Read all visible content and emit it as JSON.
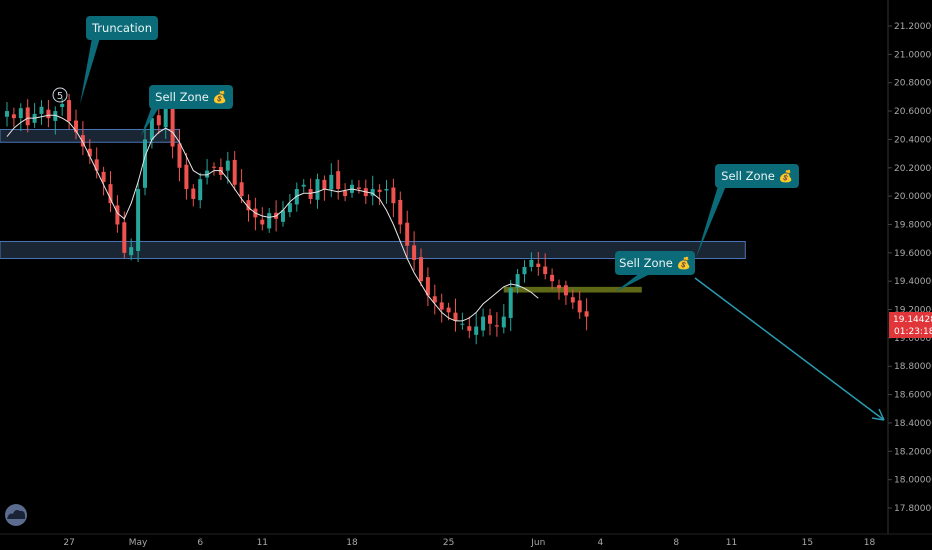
{
  "chart_data": {
    "type": "candlestick",
    "y_axis_labels": [
      "21.20000",
      "21.00000",
      "20.80000",
      "20.60000",
      "20.40000",
      "20.20000",
      "20.00000",
      "19.80000",
      "19.60000",
      "19.40000",
      "19.20000",
      "19.00000",
      "18.80000",
      "18.60000",
      "18.40000",
      "18.20000",
      "18.00000",
      "17.80000"
    ],
    "y_axis_values": [
      21.2,
      21.0,
      20.8,
      20.6,
      20.4,
      20.2,
      20.0,
      19.8,
      19.6,
      19.4,
      19.2,
      19.0,
      18.8,
      18.6,
      18.4,
      18.2,
      18.0,
      17.8
    ],
    "ylim": [
      17.66,
      21.36
    ],
    "x_axis_labels": [
      "27",
      "May",
      "6",
      "11",
      "18",
      "25",
      "Jun",
      "4",
      "8",
      "11",
      "15",
      "18"
    ],
    "x_axis_index": [
      9,
      19,
      28,
      37,
      50,
      64,
      77,
      86,
      97,
      105,
      116,
      125
    ],
    "xlim": [
      0,
      127
    ],
    "current_price": "19.14428",
    "countdown": "01:23:18",
    "wave_label": "5",
    "annotations": [
      "Truncation",
      "Sell Zone 💰",
      "Sell Zone 💰",
      "Sell Zone 💰"
    ],
    "zones": [
      {
        "name": "upper-resistance-zone",
        "y": [
          20.38,
          20.47
        ],
        "x": [
          0,
          25
        ]
      },
      {
        "name": "middle-resistance-zone",
        "y": [
          19.56,
          19.68
        ],
        "x": [
          0,
          107
        ]
      },
      {
        "name": "small-supply-zone",
        "y": [
          19.32,
          19.36
        ],
        "x": [
          73,
          92
        ]
      }
    ],
    "projection": {
      "from": [
        99,
        19.43
      ],
      "to": [
        126,
        18.43
      ]
    },
    "series_closes": [
      20.6,
      20.55,
      20.62,
      20.5,
      20.58,
      20.63,
      20.55,
      20.6,
      20.65,
      20.53,
      20.45,
      20.35,
      20.28,
      20.18,
      20.1,
      19.95,
      19.8,
      19.6,
      19.64,
      20.05,
      20.4,
      20.55,
      20.5,
      20.66,
      20.35,
      20.2,
      20.05,
      19.98,
      20.12,
      20.18,
      20.2,
      20.15,
      20.25,
      20.08,
      20.0,
      19.9,
      19.85,
      19.8,
      19.88,
      19.84,
      19.9,
      19.95,
      20.05,
      20.08,
      19.98,
      20.12,
      20.05,
      20.15,
      20.05,
      20.0,
      20.08,
      20.05,
      20.0,
      20.05,
      20.03,
      20.05,
      19.95,
      19.8,
      19.65,
      19.55,
      19.4,
      19.3,
      19.25,
      19.2,
      19.18,
      19.12,
      19.1,
      19.05,
      19.08,
      19.15,
      19.1,
      19.08,
      19.15,
      19.35,
      19.45,
      19.5,
      19.55,
      19.5,
      19.45,
      19.4,
      19.35,
      19.3,
      19.25,
      19.18,
      19.15
    ],
    "ma_series": [
      20.42,
      20.48,
      20.52,
      20.55,
      20.55,
      20.56,
      20.57,
      20.57,
      20.55,
      20.52,
      20.46,
      20.38,
      20.28,
      20.18,
      20.08,
      19.98,
      19.88,
      19.84,
      19.95,
      20.1,
      20.28,
      20.4,
      20.45,
      20.48,
      20.45,
      20.38,
      20.28,
      20.18,
      20.15,
      20.15,
      20.18,
      20.18,
      20.12,
      20.05,
      19.98,
      19.92,
      19.88,
      19.86,
      19.85,
      19.86,
      19.9,
      19.96,
      20.0,
      20.02,
      20.02,
      20.03,
      20.05,
      20.04,
      20.03,
      20.04,
      20.05,
      20.04,
      20.03,
      20.02,
      19.98,
      19.9,
      19.8,
      19.68,
      19.56,
      19.46,
      19.38,
      19.3,
      19.24,
      19.18,
      19.14,
      19.12,
      19.12,
      19.14,
      19.18,
      19.24,
      19.28,
      19.32,
      19.36,
      19.38,
      19.37,
      19.35,
      19.32,
      19.28
    ]
  },
  "colors": {
    "background": "#000000",
    "up": "#26a69a",
    "down": "#ef5350",
    "ma": "#e6e6e6",
    "zone_fill": "#1e2a3a",
    "zone_stroke": "#4a74b8",
    "supply_fill": "#707a1a",
    "callout": "#0b6b78",
    "price_tag": "#e0363a",
    "axis_text": "#a8a8a8",
    "arrow": "#2a9bb0"
  },
  "logo": "tradingview-cloud-icon"
}
